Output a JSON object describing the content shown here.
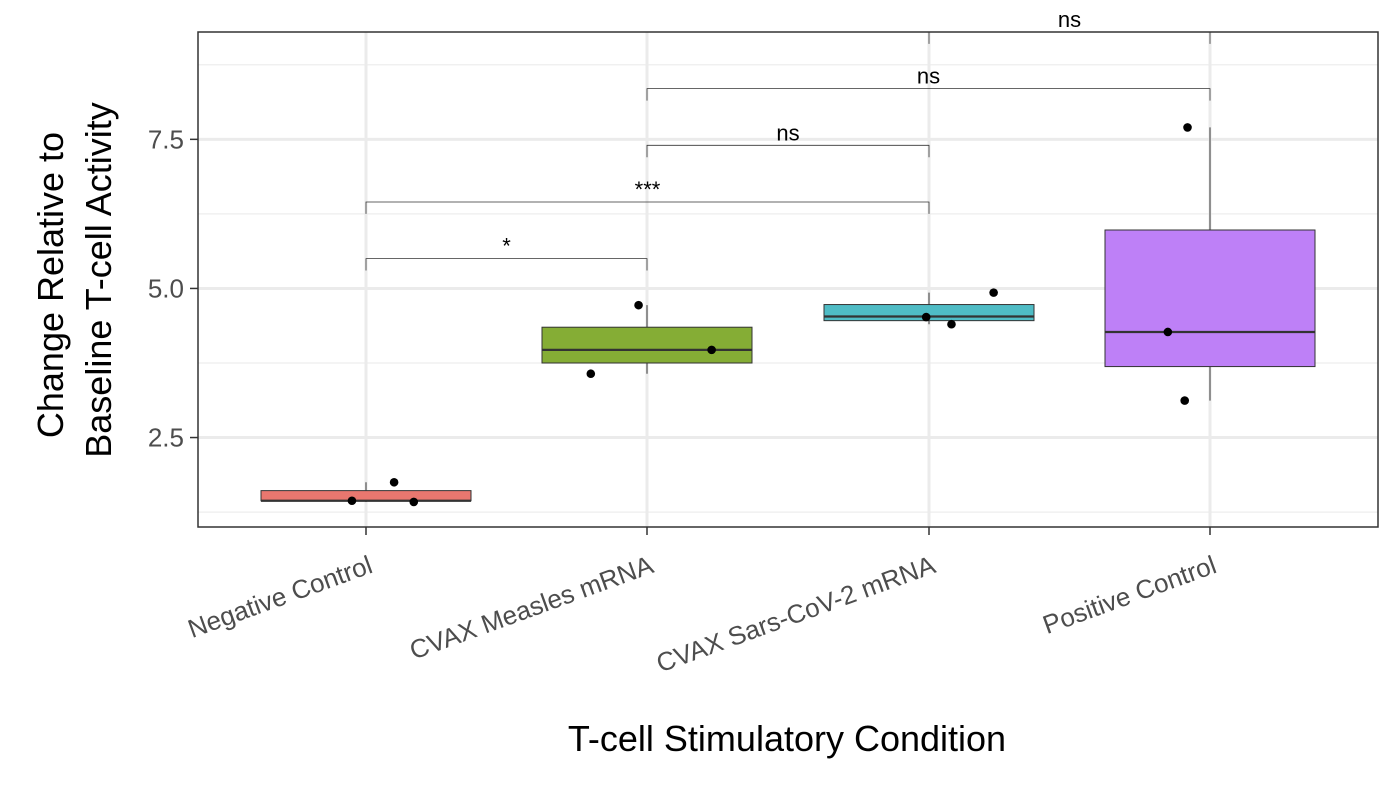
{
  "chart_data": {
    "type": "boxplot",
    "xlabel": "T-cell Stimulatory Condition",
    "ylabel_lines": [
      "Change Relative to",
      "Baseline T-cell Activity"
    ],
    "ylim": [
      1.0,
      9.3
    ],
    "yticks": [
      2.5,
      5.0,
      7.5
    ],
    "ytick_labels": [
      "2.5",
      "5.0",
      "7.5"
    ],
    "minor_yticks": [
      1.25,
      3.75,
      6.25,
      8.75
    ],
    "categories": [
      "Negative Control",
      "CVAX Measles mRNA",
      "CVAX Sars-CoV-2 mRNA",
      "Positive Control"
    ],
    "colors": [
      "#E9776F",
      "#85AD35",
      "#4FBCC5",
      "#BE80F7"
    ],
    "boxes": [
      {
        "min": 1.42,
        "q1": 1.44,
        "median": 1.44,
        "q3": 1.61,
        "max": 1.75
      },
      {
        "min": 3.57,
        "q1": 3.75,
        "median": 3.97,
        "q3": 4.35,
        "max": 4.72
      },
      {
        "min": 4.4,
        "q1": 4.46,
        "median": 4.53,
        "q3": 4.73,
        "max": 4.93
      },
      {
        "min": 3.12,
        "q1": 3.69,
        "median": 4.27,
        "q3": 5.98,
        "max": 7.7
      }
    ],
    "points": [
      {
        "group": 0,
        "jitter": -0.05,
        "y": 1.44
      },
      {
        "group": 0,
        "jitter": 0.1,
        "y": 1.75
      },
      {
        "group": 0,
        "jitter": 0.17,
        "y": 1.42
      },
      {
        "group": 1,
        "jitter": -0.2,
        "y": 3.57
      },
      {
        "group": 1,
        "jitter": -0.03,
        "y": 4.72
      },
      {
        "group": 1,
        "jitter": 0.23,
        "y": 3.97
      },
      {
        "group": 2,
        "jitter": -0.01,
        "y": 4.52
      },
      {
        "group": 2,
        "jitter": 0.08,
        "y": 4.4
      },
      {
        "group": 2,
        "jitter": 0.23,
        "y": 4.93
      },
      {
        "group": 3,
        "jitter": -0.15,
        "y": 4.27
      },
      {
        "group": 3,
        "jitter": -0.09,
        "y": 3.12
      },
      {
        "group": 3,
        "jitter": -0.08,
        "y": 7.7
      }
    ],
    "comparisons": [
      {
        "from": 0,
        "to": 1,
        "y": 5.5,
        "tick_to": 5.3,
        "label": "*"
      },
      {
        "from": 0,
        "to": 2,
        "y": 6.45,
        "tick_to": 6.25,
        "label": "***"
      },
      {
        "from": 1,
        "to": 2,
        "y": 7.4,
        "tick_to": 7.2,
        "label": "ns"
      },
      {
        "from": 1,
        "to": 3,
        "y": 8.35,
        "tick_to": 8.15,
        "label": "ns"
      },
      {
        "from": 2,
        "to": 3,
        "y": 9.3,
        "tick_to": 9.1,
        "label": "ns"
      }
    ]
  }
}
